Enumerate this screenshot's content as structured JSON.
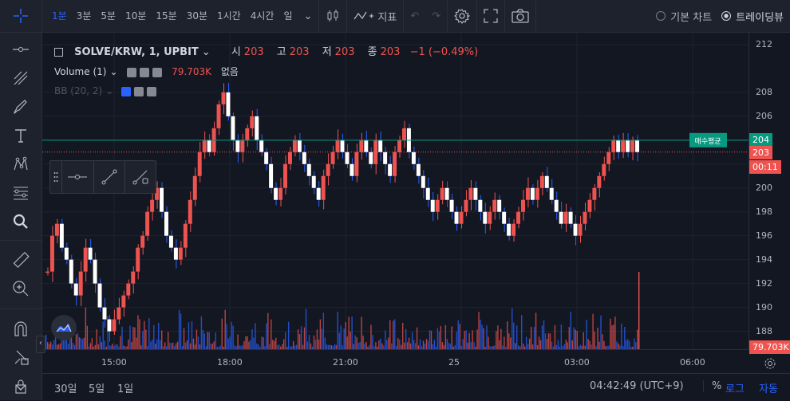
{
  "toolbar": {
    "timeframes": [
      "1분",
      "3분",
      "5분",
      "10분",
      "15분",
      "30분",
      "1시간",
      "4시간",
      "일"
    ],
    "active_timeframe": "1분",
    "indicators_label": "지표",
    "chart_modes": [
      "기본 차트",
      "트레이딩뷰"
    ],
    "active_mode": "트레이딩뷰"
  },
  "legend": {
    "symbol": "SOLVE/KRW, 1, UPBIT",
    "o_label": "시",
    "o": "203",
    "h_label": "고",
    "h": "203",
    "l_label": "저",
    "l": "203",
    "c_label": "종",
    "c": "203",
    "change": "−1 (−0.49%)",
    "volume_label": "Volume (1)",
    "volume_value": "79.703K",
    "volume_extra": "없음",
    "bb_label": "BB (20, 2)"
  },
  "price_axis": {
    "ticks": [
      "212",
      "208",
      "206",
      "204",
      "202",
      "200",
      "198",
      "196",
      "194",
      "192",
      "190",
      "188"
    ],
    "avg_tag": "204",
    "last_tag": "203",
    "countdown": "00:11",
    "volume_tag": "79.703K",
    "avg_label": "매수평균"
  },
  "time_axis": {
    "ticks": [
      "15:00",
      "18:00",
      "21:00",
      "25",
      "03:00",
      "06:00"
    ]
  },
  "bottom": {
    "ranges": [
      "30일",
      "5일",
      "1일"
    ],
    "clock": "04:42:49 (UTC+9)",
    "percent": "%",
    "log": "로그",
    "auto": "자동"
  },
  "colors": {
    "up": "#ef5350",
    "down": "#2962ff",
    "avg_line": "#089981",
    "bg": "#131722"
  },
  "chart_data": {
    "type": "candlestick",
    "ylim": [
      186.5,
      213
    ],
    "closes": [
      193,
      196,
      197,
      195,
      194,
      192,
      191,
      193,
      195,
      194,
      192,
      190,
      189,
      188,
      189,
      190,
      191,
      192,
      193,
      195,
      196,
      198,
      199,
      200,
      198,
      196,
      195,
      194,
      195,
      197,
      199,
      201,
      203,
      204,
      203,
      205,
      207,
      208,
      206,
      204,
      203,
      204,
      205,
      206,
      204,
      203,
      202,
      200,
      199,
      200,
      202,
      203,
      204,
      203,
      202,
      201,
      200,
      199,
      201,
      202,
      203,
      204,
      203,
      202,
      201,
      203,
      204,
      203,
      202,
      204,
      203,
      202,
      201,
      203,
      204,
      205,
      203,
      202,
      201,
      200,
      199,
      198,
      199,
      200,
      199,
      198,
      197,
      198,
      199,
      200,
      199,
      198,
      197,
      198,
      199,
      198,
      197,
      196,
      197,
      198,
      199,
      200,
      199,
      200,
      201,
      200,
      199,
      198,
      197,
      198,
      197,
      196,
      197,
      198,
      199,
      200,
      201,
      202,
      203,
      204,
      203,
      204,
      203,
      204,
      203
    ],
    "last": 203,
    "avg_price": 204
  }
}
